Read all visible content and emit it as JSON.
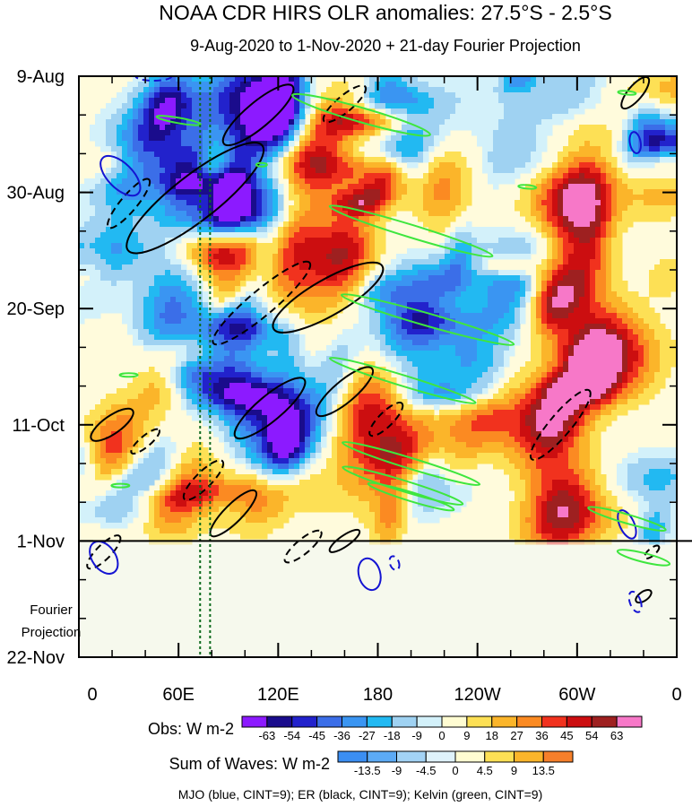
{
  "chart_data": {
    "type": "heatmap",
    "title": "NOAA CDR HIRS OLR anomalies: 27.5°S - 2.5°S",
    "subtitle": "9-Aug-2020 to 1-Nov-2020 + 21-day Fourier Projection",
    "y_ticks": [
      {
        "label": "9-Aug",
        "day": 0
      },
      {
        "label": "30-Aug",
        "day": 21
      },
      {
        "label": "20-Sep",
        "day": 42
      },
      {
        "label": "11-Oct",
        "day": 63
      },
      {
        "label": "1-Nov",
        "day": 84
      },
      {
        "label": "22-Nov",
        "day": 105
      }
    ],
    "y_minor_step_days": 7,
    "x_ticks": [
      {
        "label": "0",
        "lon": 0
      },
      {
        "label": "60E",
        "lon": 60
      },
      {
        "label": "120E",
        "lon": 120
      },
      {
        "label": "180",
        "lon": 180
      },
      {
        "label": "120W",
        "lon": 240
      },
      {
        "label": "60W",
        "lon": 300
      },
      {
        "label": "0",
        "lon": 360
      }
    ],
    "x_minor_step_deg": 20,
    "xlim": [
      0,
      360
    ],
    "ylim_days": [
      0,
      105
    ],
    "projection_start_day": 84,
    "projection_label": [
      "Fourier",
      "Projection"
    ],
    "reference_lines_lon": [
      73,
      79
    ],
    "obs_colorbar": {
      "label": "Obs: W m-2",
      "levels": [
        "-63",
        "-54",
        "-45",
        "-36",
        "-27",
        "-18",
        "-9",
        "0",
        "9",
        "18",
        "27",
        "36",
        "45",
        "54",
        "63"
      ],
      "colors": [
        "#8c1aff",
        "#1a0c8c",
        "#2222cc",
        "#3b6ee8",
        "#3a95f2",
        "#22b9f2",
        "#9fd2f2",
        "#d3f1fa",
        "#fffcd2",
        "#fde055",
        "#fbb52a",
        "#fb8a22",
        "#f1321e",
        "#cc0e10",
        "#9e2020",
        "#f778c8"
      ]
    },
    "waves_colorbar": {
      "label": "Sum of Waves: W m-2",
      "levels": [
        "-13.5",
        "-9",
        "-4.5",
        "0",
        "4.5",
        "9",
        "13.5"
      ],
      "colors": [
        "#3b8ef2",
        "#5caaf5",
        "#a3d3f5",
        "#dff2fb",
        "#fffcd2",
        "#fde055",
        "#fbb52a",
        "#f67f2a"
      ]
    },
    "legend_note": "MJO (blue, CINT=9); ER (black, CINT=9); Kelvin (green, CINT=9)",
    "mjo_color": "#1414d2",
    "er_color": "#000000",
    "kelvin_color": "#3ee63e",
    "reference_line_color": "#0e6b1e"
  }
}
